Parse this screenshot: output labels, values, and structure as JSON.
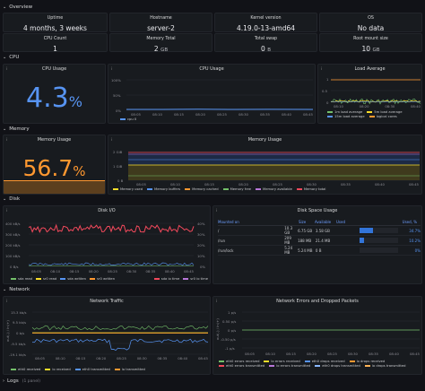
{
  "rows": {
    "overview": "Overview",
    "cpu": "CPU",
    "memory": "Memory",
    "disk": "Disk",
    "network": "Network",
    "logs": "Logs",
    "logs_sub": "(1 panel)"
  },
  "overview": {
    "uptime_label": "Uptime",
    "uptime_value": "4 months, 3 weeks",
    "hostname_label": "Hostname",
    "hostname_value": "server-2",
    "kernel_label": "Kernel version",
    "kernel_value": "4.19.0-13-amd64",
    "os_label": "OS",
    "os_value": "No data",
    "cpucount_label": "CPU Count",
    "cpucount_value": "1",
    "memtotal_label": "Memory Total",
    "memtotal_value": "2",
    "memtotal_unit": "GB",
    "swap_label": "Total swap",
    "swap_value": "0",
    "swap_unit": "B",
    "rootmount_label": "Root mount size",
    "rootmount_value": "10",
    "rootmount_unit": "GB"
  },
  "cpu_usage_stat": {
    "title": "CPU Usage",
    "value": "4.3",
    "unit": "%",
    "color": "#5794f2"
  },
  "cpu_usage_chart": {
    "title": "CPU Usage",
    "yticks": [
      "100%",
      "50%",
      "0%"
    ],
    "xticks": [
      "08:05",
      "08:10",
      "08:15",
      "08:20",
      "08:25",
      "08:30",
      "08:35",
      "08:40",
      "08:45"
    ],
    "legend": [
      "cpu 0"
    ]
  },
  "load_average": {
    "title": "Load Average",
    "yticks": [
      "1",
      "0.5",
      "0"
    ],
    "xticks": [
      "08:10",
      "08:20",
      "08:30",
      "08:40"
    ],
    "legend": [
      "1m load average",
      "5m load average",
      "15m load average",
      "logical cores"
    ],
    "colors": [
      "#73bf69",
      "#fade2a",
      "#5794f2",
      "#ff9830"
    ]
  },
  "memory_usage_stat": {
    "title": "Memory Usage",
    "value": "56.7",
    "unit": "%",
    "color": "#ff9830"
  },
  "memory_usage_chart": {
    "title": "Memory Usage",
    "yticks": [
      "2 GiB",
      "1 GiB",
      "0 B"
    ],
    "xticks": [
      "08:05",
      "08:10",
      "08:15",
      "08:20",
      "08:25",
      "08:30",
      "08:35",
      "08:40",
      "08:45"
    ],
    "legend": [
      "Memory used",
      "Memory buffers",
      "Memory cached",
      "Memory free",
      "Memory available",
      "Memory total"
    ],
    "colors": [
      "#fade2a",
      "#5794f2",
      "#ff9830",
      "#73bf69",
      "#b877d9",
      "#f2495c"
    ]
  },
  "disk_io": {
    "title": "Disk I/O",
    "yticks_left": [
      "400 kB/s",
      "300 kB/s",
      "200 kB/s",
      "100 kB/s",
      "0 B/s"
    ],
    "yticks_right": [
      "40%",
      "30%",
      "20%",
      "10%",
      "0%"
    ],
    "xticks": [
      "08:05",
      "08:10",
      "08:15",
      "08:20",
      "08:25",
      "08:30",
      "08:35",
      "08:40",
      "08:45"
    ],
    "legend": [
      "sda read",
      "sr0 read",
      "sda written",
      "sr0 written",
      "sda io time",
      "sr0 io time"
    ],
    "colors": [
      "#73bf69",
      "#fade2a",
      "#5794f2",
      "#ff9830",
      "#f2495c",
      "#b877d9"
    ]
  },
  "disk_space": {
    "title": "Disk Space Usage",
    "headers": [
      "Mounted on",
      "Size",
      "Available",
      "Used",
      "Used, %"
    ],
    "rows": [
      {
        "mount": "/",
        "size": "10.3 GB",
        "avail": "6.75 GB",
        "used": "3.58 GB",
        "pct": "34.7%",
        "frac": 0.347
      },
      {
        "mount": "/run",
        "size": "209 MB",
        "avail": "188 MB",
        "used": "21.4 MB",
        "pct": "10.2%",
        "frac": 0.102
      },
      {
        "mount": "/run/lock",
        "size": "5.24 MB",
        "avail": "5.24 MB",
        "used": "0 B",
        "pct": "0%",
        "frac": 0.0
      }
    ]
  },
  "network_traffic": {
    "title": "Network Traffic",
    "yticks": [
      "15.3 kb/s",
      "9.5 kb/s",
      "0 b/s",
      "-9.5 kb/s",
      "-19.1 kb/s"
    ],
    "ylabel": "out(-) / in(+)",
    "xticks": [
      "08:05",
      "08:10",
      "08:15",
      "08:20",
      "08:25",
      "08:30",
      "08:35",
      "08:40",
      "08:45"
    ],
    "legend": [
      "eth0 received",
      "lo received",
      "eth0 transmitted",
      "lo transmitted"
    ],
    "colors": [
      "#73bf69",
      "#fade2a",
      "#5794f2",
      "#ff9830"
    ]
  },
  "network_errors": {
    "title": "Network Errors and Dropped Packets",
    "yticks": [
      "1 p/s",
      "0.50 p/s",
      "0 p/s",
      "-0.50 p/s",
      "-1 p/s"
    ],
    "ylabel": "out(-) / in(+)",
    "xticks": [
      "08:05",
      "08:10",
      "08:15",
      "08:20",
      "08:25",
      "08:30",
      "08:35",
      "08:40",
      "08:45"
    ],
    "legend": [
      "eth0 errors received",
      "lo errors received",
      "eth0 drops received",
      "lo drops received",
      "eth0 errors transmitted",
      "lo errors transmitted",
      "eth0 drops transmitted",
      "lo drops transmitted"
    ],
    "colors": [
      "#73bf69",
      "#fade2a",
      "#5794f2",
      "#ff9830",
      "#f2495c",
      "#b877d9",
      "#8ab8ff",
      "#ffb357"
    ]
  }
}
